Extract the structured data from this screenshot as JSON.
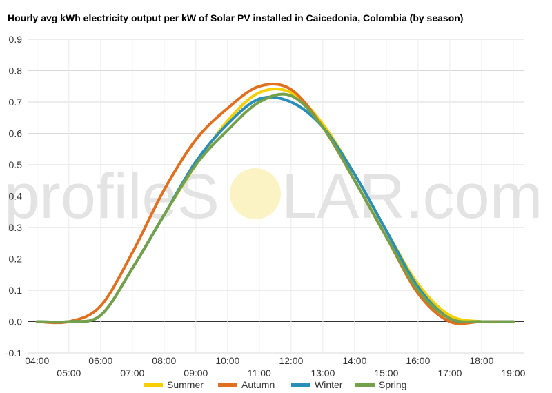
{
  "watermark": {
    "left_text": "profileS",
    "right_text": "LAR.com"
  },
  "chart_data": {
    "type": "line",
    "title": "Hourly avg kWh electricity output per kW of Solar PV installed in Caicedonia, Colombia (by season)",
    "xlabel": "",
    "ylabel": "",
    "x": [
      4,
      5,
      6,
      7,
      8,
      9,
      10,
      11,
      12,
      13,
      14,
      15,
      16,
      17,
      18,
      19
    ],
    "x_tick_labels_upper": [
      "04:00",
      "06:00",
      "08:00",
      "10:00",
      "12:00",
      "14:00",
      "16:00",
      "18:00"
    ],
    "x_tick_labels_lower": [
      "05:00",
      "07:00",
      "09:00",
      "11:00",
      "13:00",
      "15:00",
      "17:00",
      "19:00"
    ],
    "ylim": [
      -0.1,
      0.9
    ],
    "y_ticks": [
      -0.1,
      0.0,
      0.1,
      0.2,
      0.3,
      0.4,
      0.5,
      0.6,
      0.7,
      0.8,
      0.9
    ],
    "grid": true,
    "legend_position": "bottom",
    "series": [
      {
        "name": "Summer",
        "color": "#f5d000",
        "values": [
          0.0,
          0.0,
          0.02,
          0.17,
          0.34,
          0.5,
          0.64,
          0.73,
          0.73,
          0.63,
          0.47,
          0.29,
          0.12,
          0.02,
          0.0,
          0.0
        ]
      },
      {
        "name": "Autumn",
        "color": "#e07020",
        "values": [
          0.0,
          0.0,
          0.05,
          0.22,
          0.42,
          0.58,
          0.68,
          0.75,
          0.74,
          0.62,
          0.45,
          0.27,
          0.09,
          0.0,
          0.0,
          0.0
        ]
      },
      {
        "name": "Winter",
        "color": "#2a8fb8",
        "values": [
          0.0,
          0.0,
          0.02,
          0.17,
          0.34,
          0.51,
          0.63,
          0.71,
          0.7,
          0.62,
          0.47,
          0.29,
          0.11,
          0.01,
          0.0,
          0.0
        ]
      },
      {
        "name": "Spring",
        "color": "#73a04a",
        "values": [
          0.0,
          0.0,
          0.02,
          0.17,
          0.34,
          0.5,
          0.61,
          0.7,
          0.72,
          0.62,
          0.45,
          0.27,
          0.1,
          0.01,
          0.0,
          0.0
        ]
      }
    ]
  }
}
